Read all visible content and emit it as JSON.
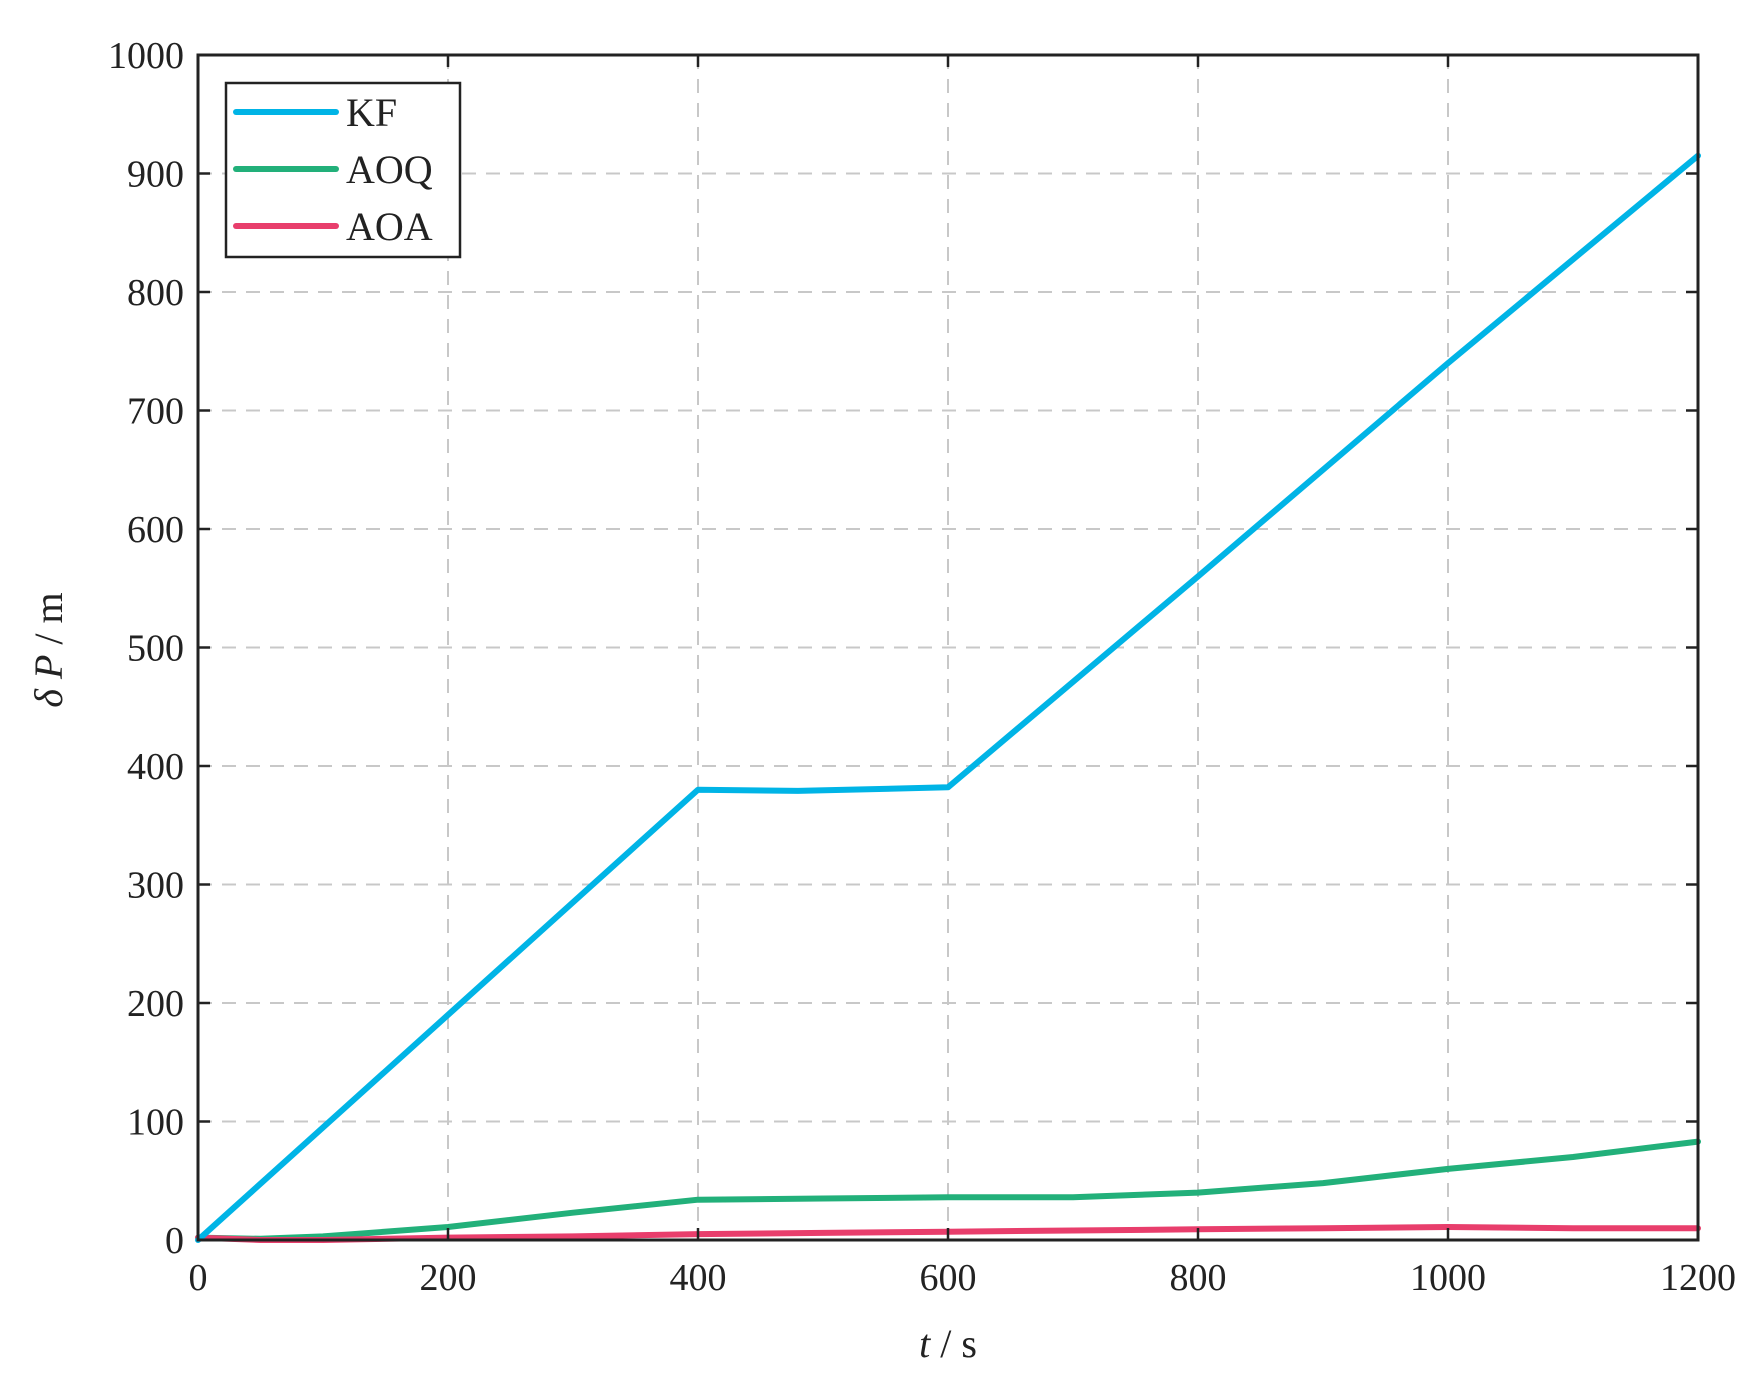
{
  "chart_data": {
    "type": "line",
    "title": "",
    "xlabel": {
      "var": "t",
      "unit": " / s"
    },
    "ylabel": {
      "var": "δ P",
      "unit": " / m"
    },
    "xlim": [
      0,
      1200
    ],
    "ylim": [
      0,
      1000
    ],
    "xticks": [
      0,
      200,
      400,
      600,
      800,
      1000,
      1200
    ],
    "yticks": [
      0,
      100,
      200,
      300,
      400,
      500,
      600,
      700,
      800,
      900,
      1000
    ],
    "grid": true,
    "legend_position": "top-left",
    "series": [
      {
        "name": "KF",
        "color": "#00b4e6",
        "x": [
          0,
          200,
          400,
          480,
          600,
          800,
          1000,
          1200
        ],
        "y": [
          0,
          190,
          380,
          379,
          382,
          560,
          740,
          915
        ]
      },
      {
        "name": "AOQ",
        "color": "#22b07a",
        "x": [
          0,
          50,
          100,
          200,
          300,
          400,
          500,
          600,
          700,
          800,
          900,
          1000,
          1100,
          1200
        ],
        "y": [
          2,
          1,
          3,
          11,
          23,
          34,
          35,
          36,
          36,
          40,
          48,
          60,
          70,
          83
        ]
      },
      {
        "name": "AOA",
        "color": "#e83e6c",
        "x": [
          0,
          50,
          100,
          200,
          300,
          400,
          500,
          600,
          700,
          800,
          900,
          1000,
          1100,
          1200
        ],
        "y": [
          2,
          0,
          0,
          2,
          3,
          5,
          6,
          7,
          8,
          9,
          10,
          11,
          10,
          10
        ]
      }
    ]
  }
}
